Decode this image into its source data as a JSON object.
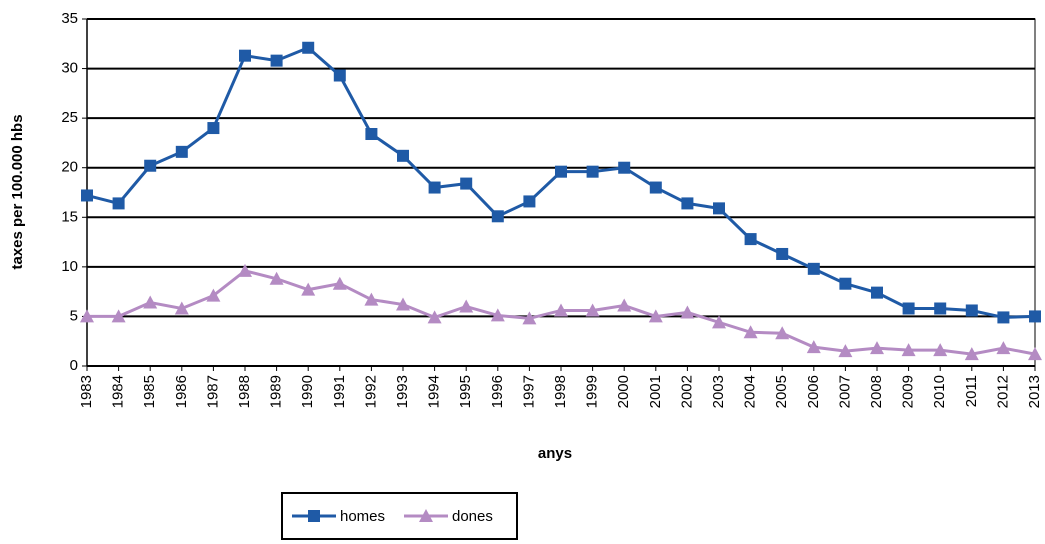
{
  "chart_data": {
    "type": "line",
    "x_label": "anys",
    "y_label": "taxes per 100.000 hbs",
    "categories": [
      "1983",
      "1984",
      "1985",
      "1986",
      "1987",
      "1988",
      "1989",
      "1990",
      "1991",
      "1992",
      "1993",
      "1994",
      "1995",
      "1996",
      "1997",
      "1998",
      "1999",
      "2000",
      "2001",
      "2002",
      "2003",
      "2004",
      "2005",
      "2006",
      "2007",
      "2008",
      "2009",
      "2010",
      "2011",
      "2012",
      "2013"
    ],
    "series": [
      {
        "name": "homes",
        "color": "#1f5aa6",
        "marker": "square",
        "values": [
          17.2,
          16.4,
          20.2,
          21.6,
          24.0,
          31.3,
          30.8,
          32.1,
          29.3,
          23.4,
          21.2,
          18.0,
          18.4,
          15.1,
          16.6,
          19.6,
          19.6,
          20.0,
          18.0,
          16.4,
          15.9,
          12.8,
          11.3,
          9.8,
          8.3,
          7.4,
          5.8,
          5.8,
          5.6,
          4.9,
          5.0
        ]
      },
      {
        "name": "dones",
        "color": "#b48bc3",
        "marker": "triangle",
        "values": [
          5.0,
          5.0,
          6.4,
          5.8,
          7.1,
          9.6,
          8.8,
          7.7,
          8.3,
          6.7,
          6.2,
          4.9,
          6.0,
          5.1,
          4.8,
          5.6,
          5.6,
          6.1,
          5.0,
          5.4,
          4.4,
          3.4,
          3.3,
          1.9,
          1.5,
          1.8,
          1.6,
          1.6,
          1.2,
          1.8,
          1.2
        ]
      }
    ],
    "ylim": [
      0,
      35
    ],
    "yticks": [
      0,
      5,
      10,
      15,
      20,
      25,
      30,
      35
    ],
    "grid": true,
    "legend": "bottom"
  }
}
